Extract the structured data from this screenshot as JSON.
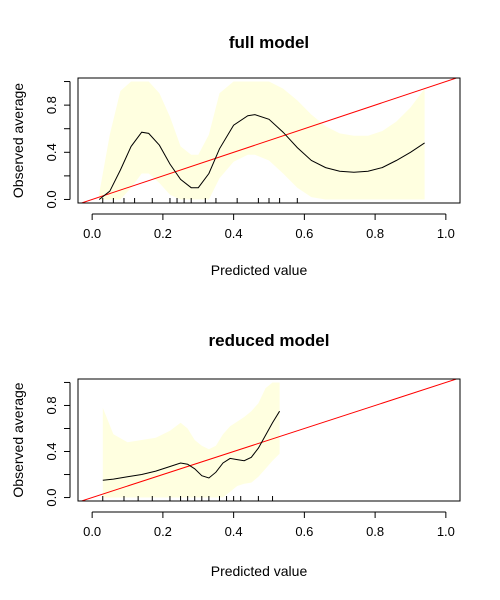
{
  "chart_data": [
    {
      "type": "line",
      "title": "full model",
      "xlabel": "Predicted value",
      "ylabel": "Observed average",
      "xlim": [
        -0.04,
        1.04
      ],
      "ylim": [
        -0.03,
        1.03
      ],
      "x_ticks": [
        "0.0",
        "0.2",
        "0.4",
        "0.6",
        "0.8",
        "1.0"
      ],
      "y_ticks": [
        "0.0",
        "0.4",
        "0.8"
      ],
      "reference_line": {
        "color": "#ff0000",
        "from": [
          0,
          0
        ],
        "to": [
          1,
          1
        ]
      },
      "band_color": "#ffffe0",
      "series": [
        {
          "x": [
            0.02,
            0.05,
            0.08,
            0.11,
            0.14,
            0.16,
            0.19,
            0.22,
            0.25,
            0.28,
            0.3,
            0.33,
            0.36,
            0.4,
            0.44,
            0.46,
            0.5,
            0.54,
            0.58,
            0.62,
            0.66,
            0.7,
            0.74,
            0.78,
            0.82,
            0.86,
            0.9,
            0.94
          ],
          "y": [
            0.0,
            0.07,
            0.25,
            0.45,
            0.57,
            0.56,
            0.46,
            0.3,
            0.17,
            0.1,
            0.1,
            0.22,
            0.43,
            0.63,
            0.71,
            0.72,
            0.68,
            0.57,
            0.44,
            0.33,
            0.27,
            0.24,
            0.23,
            0.24,
            0.27,
            0.33,
            0.4,
            0.48
          ],
          "lower": [
            0.0,
            0.0,
            0.0,
            0.1,
            0.22,
            0.22,
            0.14,
            0.04,
            0.0,
            0.0,
            0.0,
            0.0,
            0.18,
            0.32,
            0.38,
            0.38,
            0.33,
            0.22,
            0.1,
            0.02,
            0.0,
            0.0,
            0.0,
            0.0,
            0.0,
            0.0,
            0.0,
            0.0
          ],
          "upper": [
            0.05,
            0.55,
            0.92,
            1.0,
            1.0,
            1.0,
            0.9,
            0.7,
            0.45,
            0.38,
            0.38,
            0.55,
            0.9,
            1.0,
            1.0,
            1.0,
            1.0,
            0.94,
            0.84,
            0.72,
            0.62,
            0.56,
            0.54,
            0.54,
            0.58,
            0.66,
            0.78,
            0.94
          ]
        }
      ],
      "rug": [
        0.03,
        0.06,
        0.09,
        0.12,
        0.17,
        0.22,
        0.24,
        0.26,
        0.28,
        0.32,
        0.35,
        0.41,
        0.47,
        0.5,
        0.53,
        0.58
      ]
    },
    {
      "type": "line",
      "title": "reduced model",
      "xlabel": "Predicted value",
      "ylabel": "Observed average",
      "xlim": [
        -0.04,
        1.04
      ],
      "ylim": [
        -0.03,
        1.03
      ],
      "x_ticks": [
        "0.0",
        "0.2",
        "0.4",
        "0.6",
        "0.8",
        "1.0"
      ],
      "y_ticks": [
        "0.0",
        "0.4",
        "0.8"
      ],
      "reference_line": {
        "color": "#ff0000",
        "from": [
          0,
          0
        ],
        "to": [
          1,
          1
        ]
      },
      "band_color": "#ffffe0",
      "series": [
        {
          "x": [
            0.03,
            0.06,
            0.1,
            0.14,
            0.18,
            0.22,
            0.25,
            0.27,
            0.29,
            0.31,
            0.33,
            0.35,
            0.37,
            0.39,
            0.41,
            0.43,
            0.45,
            0.47,
            0.49,
            0.51,
            0.53
          ],
          "y": [
            0.15,
            0.16,
            0.18,
            0.2,
            0.23,
            0.27,
            0.3,
            0.29,
            0.25,
            0.19,
            0.17,
            0.22,
            0.3,
            0.34,
            0.33,
            0.32,
            0.35,
            0.43,
            0.54,
            0.65,
            0.75
          ],
          "lower": [
            0.0,
            0.0,
            0.0,
            0.0,
            0.0,
            0.0,
            0.0,
            0.0,
            0.0,
            0.0,
            0.0,
            0.0,
            0.0,
            0.05,
            0.1,
            0.12,
            0.13,
            0.18,
            0.25,
            0.32,
            0.38
          ],
          "upper": [
            0.78,
            0.55,
            0.48,
            0.5,
            0.52,
            0.58,
            0.65,
            0.6,
            0.5,
            0.45,
            0.42,
            0.45,
            0.55,
            0.62,
            0.66,
            0.7,
            0.75,
            0.82,
            0.95,
            1.0,
            1.0
          ]
        }
      ],
      "rug": [
        0.03,
        0.09,
        0.13,
        0.17,
        0.22,
        0.25,
        0.27,
        0.29,
        0.31,
        0.33,
        0.36,
        0.38,
        0.4,
        0.42,
        0.47,
        0.51
      ]
    }
  ]
}
